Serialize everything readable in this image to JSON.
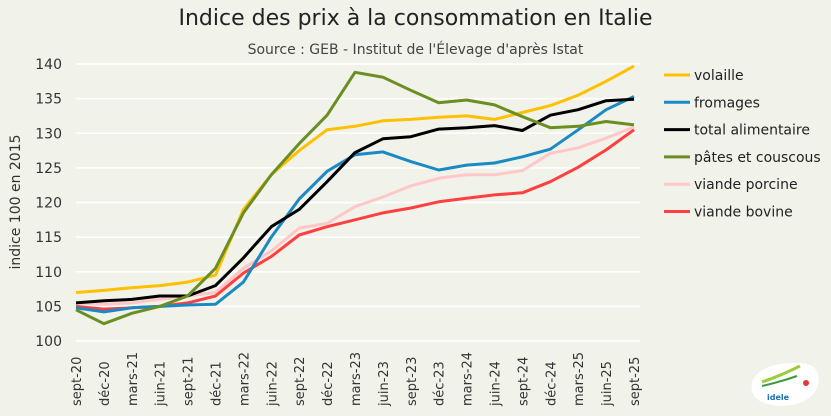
{
  "chart_data": {
    "type": "line",
    "title": "Indice  des prix à la consommation en Italie",
    "subtitle": "Source : GEB - Institut de l'Élevage d'après Istat",
    "ylabel": "indice 100 en 2015",
    "xlabel": "",
    "ylim": [
      100,
      140
    ],
    "yticks": [
      100,
      105,
      110,
      115,
      120,
      125,
      130,
      135,
      140
    ],
    "grid": "horizontal",
    "legend_placement": "right",
    "x": [
      "sept-20",
      "déc-20",
      "mars-21",
      "juin-21",
      "sept-21",
      "déc-21",
      "mars-22",
      "juin-22",
      "sept-22",
      "déc-22",
      "mars-23",
      "juin-23",
      "sept-23",
      "déc-23",
      "mars-24",
      "juin-24",
      "sept-24",
      "déc-24",
      "mars-25",
      "juin-25",
      "sept-25"
    ],
    "series": [
      {
        "name": "volaille",
        "color": "#ffc000",
        "values": [
          107,
          107.3,
          107.7,
          108,
          108.5,
          109.5,
          119,
          124,
          127.5,
          130.5,
          131,
          131.8,
          132,
          132.3,
          132.5,
          132,
          133,
          134,
          135.5,
          137.5,
          139.7
        ]
      },
      {
        "name": "fromages",
        "color": "#1b8ac4",
        "values": [
          104.8,
          104.2,
          104.8,
          105,
          105.2,
          105.3,
          108.5,
          115,
          120.5,
          124.5,
          126.9,
          127.3,
          125.9,
          124.7,
          125.4,
          125.7,
          126.6,
          127.7,
          130.5,
          133.4,
          135.3
        ]
      },
      {
        "name": "total alimentaire",
        "color": "#000000",
        "values": [
          105.5,
          105.8,
          106,
          106.5,
          106.5,
          108,
          112,
          116.5,
          119,
          123,
          127.2,
          129.2,
          129.5,
          130.6,
          130.8,
          131.1,
          130.4,
          132.6,
          133.4,
          134.7,
          134.9
        ]
      },
      {
        "name": "pâtes et couscous",
        "color": "#6b8e23",
        "values": [
          104.5,
          102.5,
          104,
          105,
          106.5,
          110.5,
          118.5,
          124,
          128.5,
          132.6,
          138.8,
          138.1,
          136.2,
          134.4,
          134.8,
          134.1,
          132.4,
          130.8,
          131,
          131.7,
          131.2
        ]
      },
      {
        "name": "viande porcine",
        "color": "#ffc7c7",
        "values": [
          105.5,
          105.3,
          105.5,
          106,
          106.5,
          107,
          110.5,
          113,
          116.3,
          117,
          119.4,
          120.8,
          122.4,
          123.5,
          124,
          124,
          124.6,
          127.1,
          127.9,
          129.3,
          130.9
        ]
      },
      {
        "name": "viande bovine",
        "color": "#ff4040",
        "values": [
          105,
          104.6,
          104.8,
          105,
          105.5,
          106.5,
          109.8,
          112.2,
          115.3,
          116.5,
          117.5,
          118.5,
          119.2,
          120.1,
          120.6,
          121.1,
          121.4,
          123,
          125.1,
          127.6,
          130.5
        ]
      }
    ]
  },
  "logo": {
    "text": "Institut de l'Élevage idele"
  }
}
